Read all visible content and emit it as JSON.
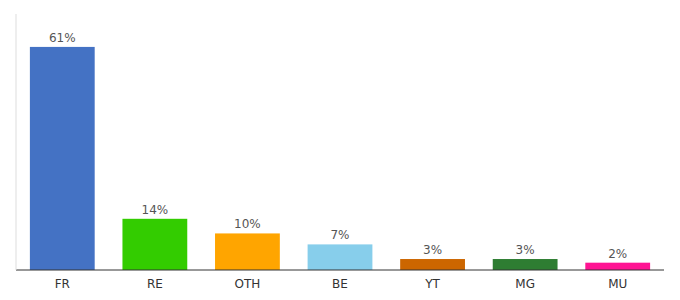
{
  "chart_data": {
    "type": "bar",
    "categories": [
      "FR",
      "RE",
      "OTH",
      "BE",
      "YT",
      "MG",
      "MU"
    ],
    "values": [
      61,
      14,
      10,
      7,
      3,
      3,
      2
    ],
    "value_labels": [
      "61%",
      "14%",
      "10%",
      "7%",
      "3%",
      "3%",
      "2%"
    ],
    "colors": [
      "#4472C4",
      "#33CC00",
      "#FFA500",
      "#87CEEB",
      "#CC6600",
      "#2E7D32",
      "#FF1493"
    ],
    "ylim": [
      0,
      70
    ],
    "data_labels": true,
    "tick_labels": "x",
    "grid": false
  }
}
